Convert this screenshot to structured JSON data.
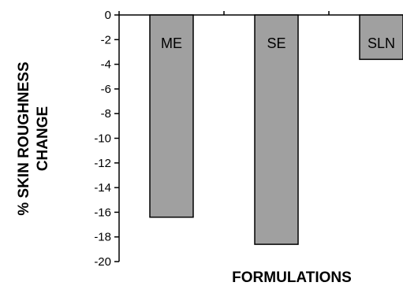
{
  "chart_data": {
    "type": "bar",
    "categories": [
      "ME",
      "SE",
      "SLN"
    ],
    "values": [
      -16.4,
      -18.6,
      -3.6
    ],
    "bar_labels": [
      "ME",
      "SE",
      "SLN"
    ],
    "ylabel": [
      "% SKIN ROUGHNESS",
      "CHANGE"
    ],
    "xlabel": "FORMULATIONS",
    "ylim": [
      -20,
      0
    ],
    "yticks": [
      0,
      -2,
      -4,
      -6,
      -8,
      -10,
      -12,
      -14,
      -16,
      -18,
      -20
    ],
    "ytick_labels": [
      "0",
      "-2",
      "-4",
      "-6",
      "-8",
      "-10",
      "-12",
      "-14",
      "-16",
      "-18",
      "-20"
    ],
    "grid": false,
    "legend": "none",
    "colors": {
      "bar_fill": "#a0a0a0",
      "bar_stroke": "#000000",
      "axis": "#000000"
    }
  }
}
